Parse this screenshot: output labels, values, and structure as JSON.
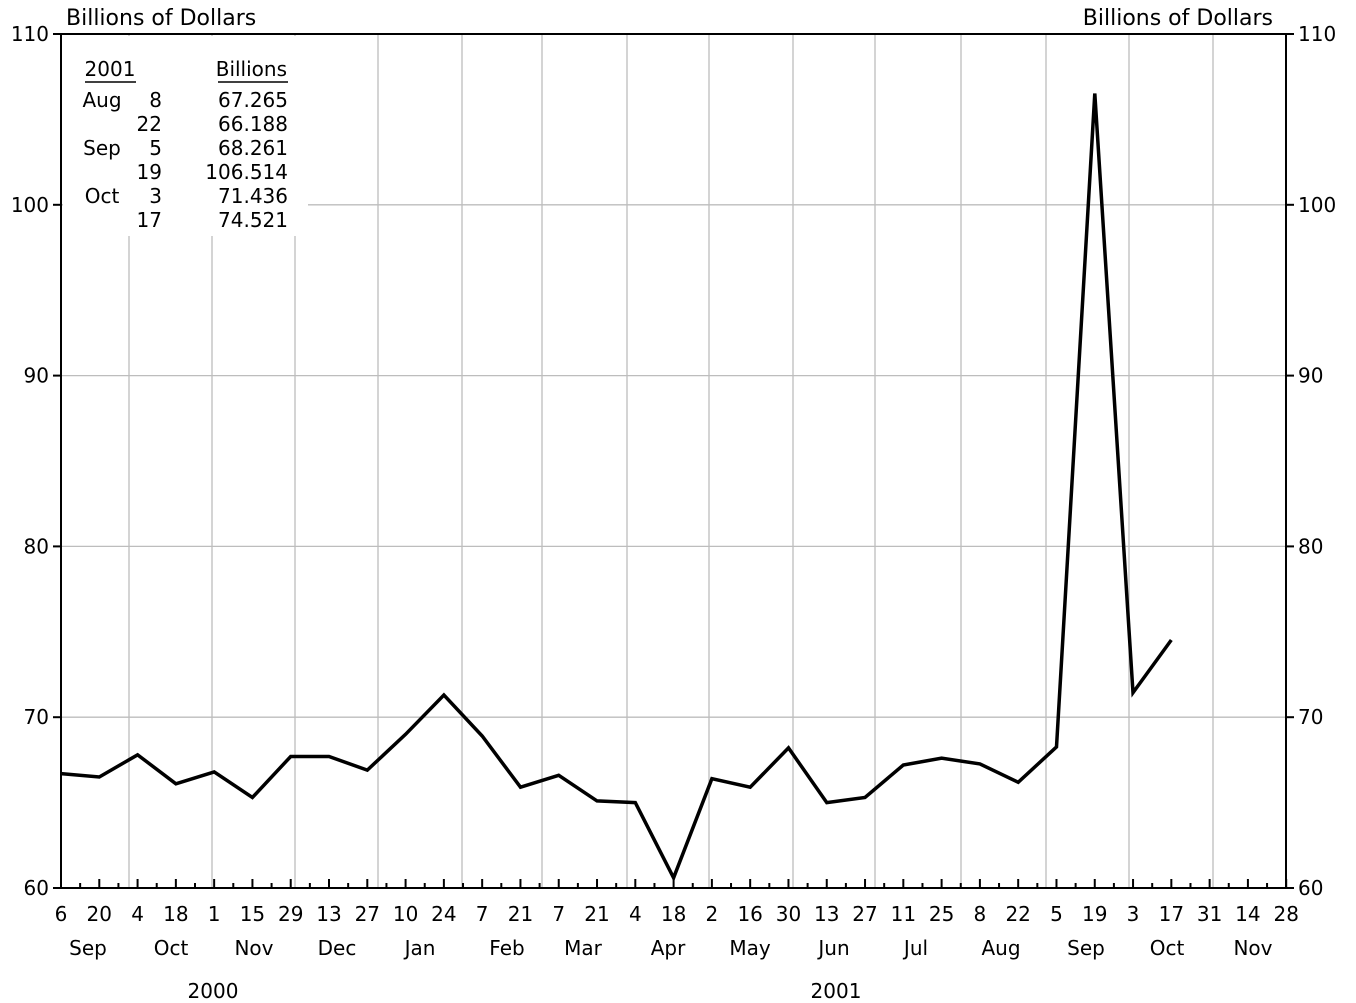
{
  "chart_data": {
    "type": "line",
    "ylabel_left": "Billions of Dollars",
    "ylabel_right": "Billions of Dollars",
    "ylim": [
      60,
      110
    ],
    "yticks": [
      60,
      70,
      80,
      90,
      100,
      110
    ],
    "grid": true,
    "x_tick_labels": [
      "6",
      "20",
      "4",
      "18",
      "1",
      "15",
      "29",
      "13",
      "27",
      "10",
      "24",
      "7",
      "21",
      "7",
      "21",
      "4",
      "18",
      "2",
      "16",
      "30",
      "13",
      "27",
      "11",
      "25",
      "8",
      "22",
      "5",
      "19",
      "3",
      "17",
      "31",
      "14",
      "28"
    ],
    "month_labels": [
      "Sep",
      "Oct",
      "Nov",
      "Dec",
      "Jan",
      "Feb",
      "Mar",
      "Apr",
      "May",
      "Jun",
      "Jul",
      "Aug",
      "Sep",
      "Oct",
      "Nov"
    ],
    "year_labels": [
      "2000",
      "2001"
    ],
    "series": [
      {
        "values": [
          66.7,
          66.5,
          67.8,
          66.1,
          66.8,
          65.3,
          67.7,
          67.7,
          66.9,
          69.0,
          71.3,
          68.9,
          65.9,
          66.6,
          65.1,
          65.0,
          60.6,
          66.4,
          65.9,
          68.2,
          65.0,
          65.3,
          67.2,
          67.6,
          67.265,
          66.188,
          68.261,
          106.514,
          71.436,
          74.521
        ]
      }
    ],
    "inset_table": {
      "header_year": "2001",
      "header_value": "Billions",
      "rows": [
        {
          "month": "Aug",
          "day": "8",
          "value": "67.265"
        },
        {
          "month": "",
          "day": "22",
          "value": "66.188"
        },
        {
          "month": "Sep",
          "day": "5",
          "value": "68.261"
        },
        {
          "month": "",
          "day": "19",
          "value": "106.514"
        },
        {
          "month": "Oct",
          "day": "3",
          "value": "71.436"
        },
        {
          "month": "",
          "day": "17",
          "value": "74.521"
        }
      ]
    }
  }
}
